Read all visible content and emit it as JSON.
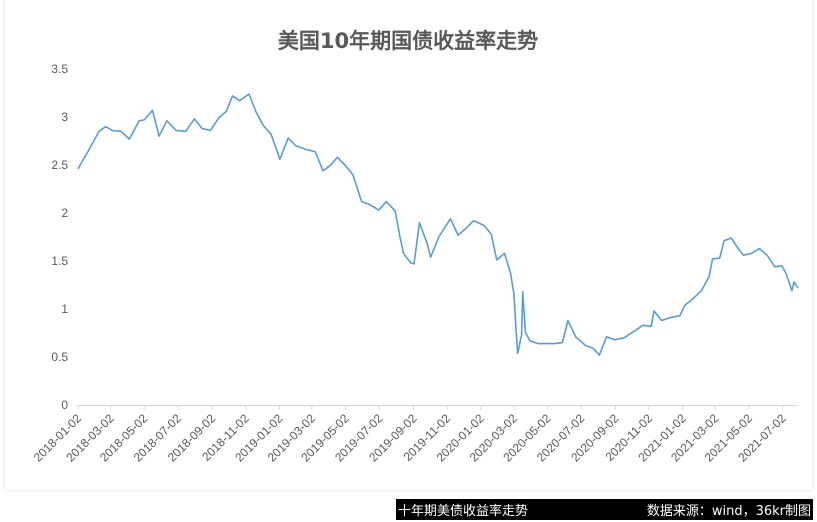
{
  "chart_data": {
    "type": "line",
    "title": "美国10年期国债收益率走势",
    "xlabel": "",
    "ylabel": "",
    "ylim": [
      0,
      3.5
    ],
    "yticks": [
      "0",
      "0.5",
      "1",
      "1.5",
      "2",
      "2.5",
      "3",
      "3.5"
    ],
    "xlim": [
      "2018-01-02",
      "2021-07-30"
    ],
    "xticks": [
      "2018-01-02",
      "2018-03-02",
      "2018-05-02",
      "2018-07-02",
      "2018-09-02",
      "2018-11-02",
      "2019-01-02",
      "2019-03-02",
      "2019-05-02",
      "2019-07-02",
      "2019-09-02",
      "2019-11-02",
      "2020-01-02",
      "2020-03-02",
      "2020-05-02",
      "2020-07-02",
      "2020-09-02",
      "2020-11-02",
      "2021-01-02",
      "2021-03-02",
      "2021-05-02",
      "2021-07-02"
    ],
    "grid": false,
    "legend": "none",
    "line_color": "#5b9bd5",
    "series": [
      {
        "x": [
          "2018-01-02",
          "2018-01-20",
          "2018-02-09",
          "2018-02-21",
          "2018-03-05",
          "2018-03-21",
          "2018-04-05",
          "2018-04-23",
          "2018-05-02",
          "2018-05-17",
          "2018-05-29",
          "2018-06-12",
          "2018-06-29",
          "2018-07-16",
          "2018-08-01",
          "2018-08-15",
          "2018-08-30",
          "2018-09-14",
          "2018-09-28",
          "2018-10-09",
          "2018-10-22",
          "2018-11-08",
          "2018-11-20",
          "2018-12-04",
          "2018-12-18",
          "2019-01-03",
          "2019-01-18",
          "2019-02-01",
          "2019-02-20",
          "2019-03-08",
          "2019-03-22",
          "2019-04-05",
          "2019-04-17",
          "2019-05-01",
          "2019-05-15",
          "2019-05-31",
          "2019-06-14",
          "2019-07-01",
          "2019-07-15",
          "2019-07-31",
          "2019-08-09",
          "2019-08-15",
          "2019-08-28",
          "2019-09-03",
          "2019-09-13",
          "2019-09-27",
          "2019-10-03",
          "2019-10-18",
          "2019-11-08",
          "2019-11-22",
          "2019-12-06",
          "2019-12-20",
          "2020-01-08",
          "2020-01-21",
          "2020-01-31",
          "2020-02-14",
          "2020-02-25",
          "2020-03-02",
          "2020-03-06",
          "2020-03-09",
          "2020-03-16",
          "2020-03-18",
          "2020-03-23",
          "2020-03-31",
          "2020-04-15",
          "2020-04-30",
          "2020-05-15",
          "2020-05-29",
          "2020-06-08",
          "2020-06-22",
          "2020-07-10",
          "2020-07-24",
          "2020-08-04",
          "2020-08-17",
          "2020-09-01",
          "2020-09-18",
          "2020-10-09",
          "2020-10-22",
          "2020-11-06",
          "2020-11-11",
          "2020-11-25",
          "2020-12-10",
          "2020-12-28",
          "2021-01-06",
          "2021-01-19",
          "2021-02-05",
          "2021-02-19",
          "2021-02-25",
          "2021-03-10",
          "2021-03-18",
          "2021-03-31",
          "2021-04-09",
          "2021-04-22",
          "2021-05-07",
          "2021-05-21",
          "2021-06-04",
          "2021-06-18",
          "2021-07-01",
          "2021-07-09",
          "2021-07-19",
          "2021-07-23",
          "2021-07-30"
        ],
        "values": [
          2.46,
          2.64,
          2.85,
          2.9,
          2.86,
          2.85,
          2.77,
          2.96,
          2.97,
          3.07,
          2.8,
          2.96,
          2.86,
          2.85,
          2.98,
          2.88,
          2.86,
          2.99,
          3.06,
          3.22,
          3.17,
          3.24,
          3.06,
          2.91,
          2.82,
          2.56,
          2.78,
          2.7,
          2.66,
          2.64,
          2.44,
          2.5,
          2.58,
          2.5,
          2.4,
          2.12,
          2.09,
          2.03,
          2.12,
          2.02,
          1.74,
          1.58,
          1.48,
          1.47,
          1.9,
          1.68,
          1.54,
          1.75,
          1.94,
          1.77,
          1.84,
          1.92,
          1.87,
          1.78,
          1.51,
          1.58,
          1.37,
          1.16,
          0.77,
          0.54,
          0.73,
          1.18,
          0.76,
          0.67,
          0.64,
          0.64,
          0.64,
          0.65,
          0.88,
          0.71,
          0.62,
          0.59,
          0.52,
          0.71,
          0.68,
          0.7,
          0.78,
          0.83,
          0.82,
          0.98,
          0.88,
          0.91,
          0.93,
          1.04,
          1.1,
          1.19,
          1.34,
          1.52,
          1.53,
          1.71,
          1.74,
          1.66,
          1.56,
          1.58,
          1.63,
          1.56,
          1.44,
          1.45,
          1.36,
          1.19,
          1.28,
          1.22
        ]
      }
    ]
  },
  "caption": {
    "left": "十年期美债收益率走势",
    "right": "数据来源：wind，36kr制图"
  }
}
